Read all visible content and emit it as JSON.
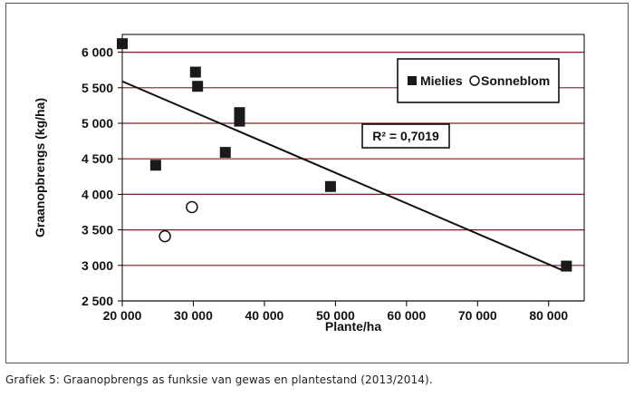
{
  "caption": "Grafiek 5: Graanopbrengs as funksie van gewas en plantestand (2013/2014).",
  "colors": {
    "grid": "#7a1f1f",
    "marker": "#1a1a1a",
    "frame": "#555555"
  },
  "chart_data": {
    "type": "scatter",
    "xlabel": "Plante/ha",
    "ylabel": "Graanopbrengs (kg/ha)",
    "xlim": [
      20000,
      85000
    ],
    "ylim": [
      2500,
      6250
    ],
    "xticks": [
      20000,
      30000,
      40000,
      50000,
      60000,
      70000,
      80000
    ],
    "xtick_labels": [
      "20 000",
      "30 000",
      "40 000",
      "50 000",
      "60 000",
      "70 000",
      "80 000"
    ],
    "yticks": [
      2500,
      3000,
      3500,
      4000,
      4500,
      5000,
      5500,
      6000
    ],
    "ytick_labels": [
      "2 500",
      "3 000",
      "3 500",
      "4 000",
      "4 500",
      "5 000",
      "5 500",
      "6 000"
    ],
    "grid": "horizontal",
    "legend_position": "top-right",
    "series": [
      {
        "name": "Mielies",
        "marker": "square-filled",
        "points": [
          {
            "x": 20000,
            "y": 6120
          },
          {
            "x": 24700,
            "y": 4410
          },
          {
            "x": 30300,
            "y": 5720
          },
          {
            "x": 30600,
            "y": 5520
          },
          {
            "x": 34500,
            "y": 4590
          },
          {
            "x": 36500,
            "y": 5150
          },
          {
            "x": 36500,
            "y": 5030
          },
          {
            "x": 49300,
            "y": 4110
          },
          {
            "x": 82500,
            "y": 2990
          }
        ]
      },
      {
        "name": "Sonneblom",
        "marker": "circle-open",
        "points": [
          {
            "x": 26000,
            "y": 3410
          },
          {
            "x": 29800,
            "y": 3820
          }
        ]
      }
    ],
    "trendline": {
      "x": [
        20000,
        82000
      ],
      "y": [
        5590,
        2930
      ]
    },
    "annotation": "R² = 0,7019"
  }
}
